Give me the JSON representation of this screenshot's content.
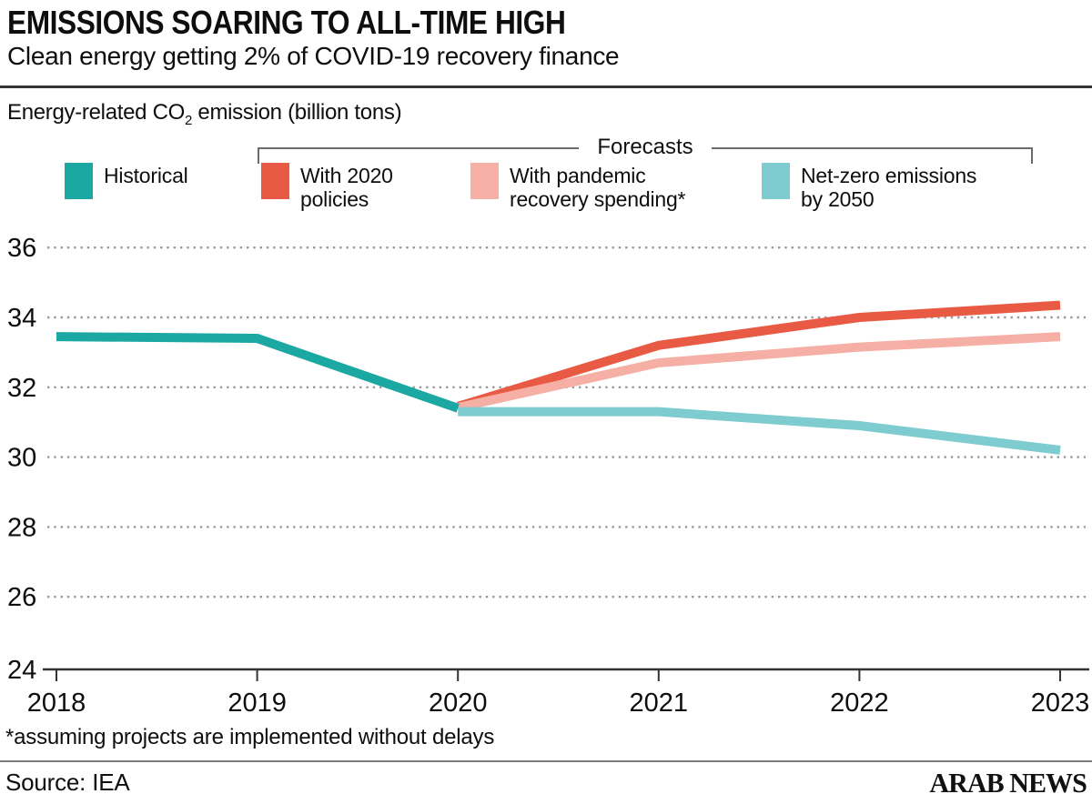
{
  "header": {
    "title": "EMISSIONS SOARING TO ALL-TIME HIGH",
    "subtitle": "Clean energy getting 2% of COVID-19 recovery finance"
  },
  "axis_title": {
    "prefix": "Energy-related CO",
    "sub": "2",
    "suffix": " emission (billion tons)"
  },
  "forecasts": {
    "label": "Forecasts"
  },
  "legend": {
    "items": [
      {
        "label": "Historical",
        "color": "#1BA8A2"
      },
      {
        "label": "With 2020\npolicies",
        "color": "#E85A43"
      },
      {
        "label": "With pandemic\nrecovery spending*",
        "color": "#F5AFA4"
      },
      {
        "label": "Net-zero emissions\nby 2050",
        "color": "#7ECBD0"
      }
    ]
  },
  "chart_data": {
    "type": "line",
    "title": "EMISSIONS SOARING TO ALL-TIME HIGH",
    "ylabel": "Energy-related CO2 emission (billion tons)",
    "years": [
      2018,
      2019,
      2020,
      2021,
      2022,
      2023
    ],
    "yticks": [
      24,
      26,
      28,
      30,
      32,
      34,
      36
    ],
    "ylim": [
      24,
      36.9
    ],
    "grid": "dotted-horizontal",
    "legend_position": "top",
    "series": [
      {
        "name": "Historical",
        "color": "#1BA8A2",
        "x": [
          2018,
          2019,
          2020
        ],
        "values": [
          33.45,
          33.4,
          31.4
        ]
      },
      {
        "name": "With 2020 policies",
        "color": "#E85A43",
        "x": [
          2020,
          2021,
          2022,
          2023
        ],
        "values": [
          31.45,
          33.2,
          34.0,
          34.35
        ]
      },
      {
        "name": "With pandemic recovery spending*",
        "color": "#F5AFA4",
        "x": [
          2020,
          2021,
          2022,
          2023
        ],
        "values": [
          31.42,
          32.7,
          33.15,
          33.45
        ]
      },
      {
        "name": "Net-zero emissions by 2050",
        "color": "#7ECBD0",
        "x": [
          2020,
          2021,
          2022,
          2023
        ],
        "values": [
          31.3,
          31.3,
          30.9,
          30.2
        ]
      }
    ]
  },
  "footnote": "*assuming projects are implemented without delays",
  "source": "Source: IEA",
  "brand": "ARAB NEWS"
}
